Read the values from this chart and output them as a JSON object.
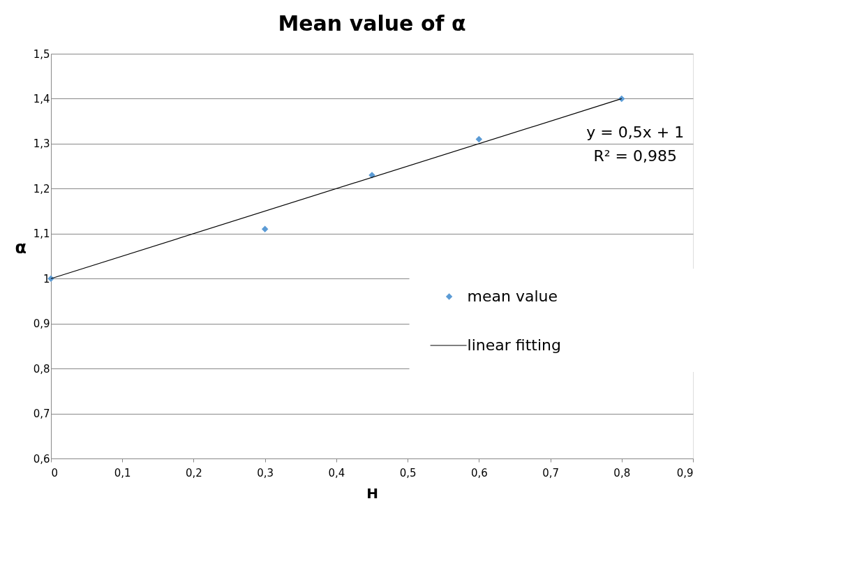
{
  "chart_data": {
    "type": "scatter",
    "title": "Mean value of α",
    "xlabel": "H",
    "ylabel": "α",
    "xlim": [
      0,
      0.9
    ],
    "ylim": [
      0.6,
      1.5
    ],
    "xticks": [
      0,
      {
        "value": 0.1,
        "label": "0,1"
      },
      {
        "value": 0.2,
        "label": "0,2"
      },
      {
        "value": 0.3,
        "label": "0,3"
      },
      {
        "value": 0.4,
        "label": "0,4"
      },
      {
        "value": 0.5,
        "label": "0,5"
      },
      {
        "value": 0.6,
        "label": "0,6"
      },
      {
        "value": 0.7,
        "label": "0,7"
      },
      {
        "value": 0.8,
        "label": "0,8"
      },
      {
        "value": 0.9,
        "label": "0,9"
      }
    ],
    "yticks": [
      {
        "value": 0.6,
        "label": "0,6"
      },
      {
        "value": 0.7,
        "label": "0,7"
      },
      {
        "value": 0.8,
        "label": "0,8"
      },
      {
        "value": 0.9,
        "label": "0,9"
      },
      1,
      {
        "value": 1.1,
        "label": "1,1"
      },
      {
        "value": 1.2,
        "label": "1,2"
      },
      {
        "value": 1.3,
        "label": "1,3"
      },
      {
        "value": 1.4,
        "label": "1,4"
      },
      {
        "value": 1.5,
        "label": "1,5"
      }
    ],
    "x": [
      0,
      0.3,
      0.45,
      0.6,
      0.8
    ],
    "series": [
      {
        "name": "mean value",
        "color": "#5b9bd5",
        "marker": "diamond",
        "values": [
          1,
          1.11,
          1.23,
          1.31,
          1.4
        ]
      },
      {
        "name": "linear fitting",
        "type": "line",
        "color": "#000000",
        "line_style": "solid",
        "x": [
          0,
          0.8
        ],
        "values": [
          1,
          1.4
        ]
      }
    ],
    "annotations": [
      "y = 0,5x + 1",
      "R² = 0,985"
    ],
    "grid": "y",
    "legend": "right"
  }
}
